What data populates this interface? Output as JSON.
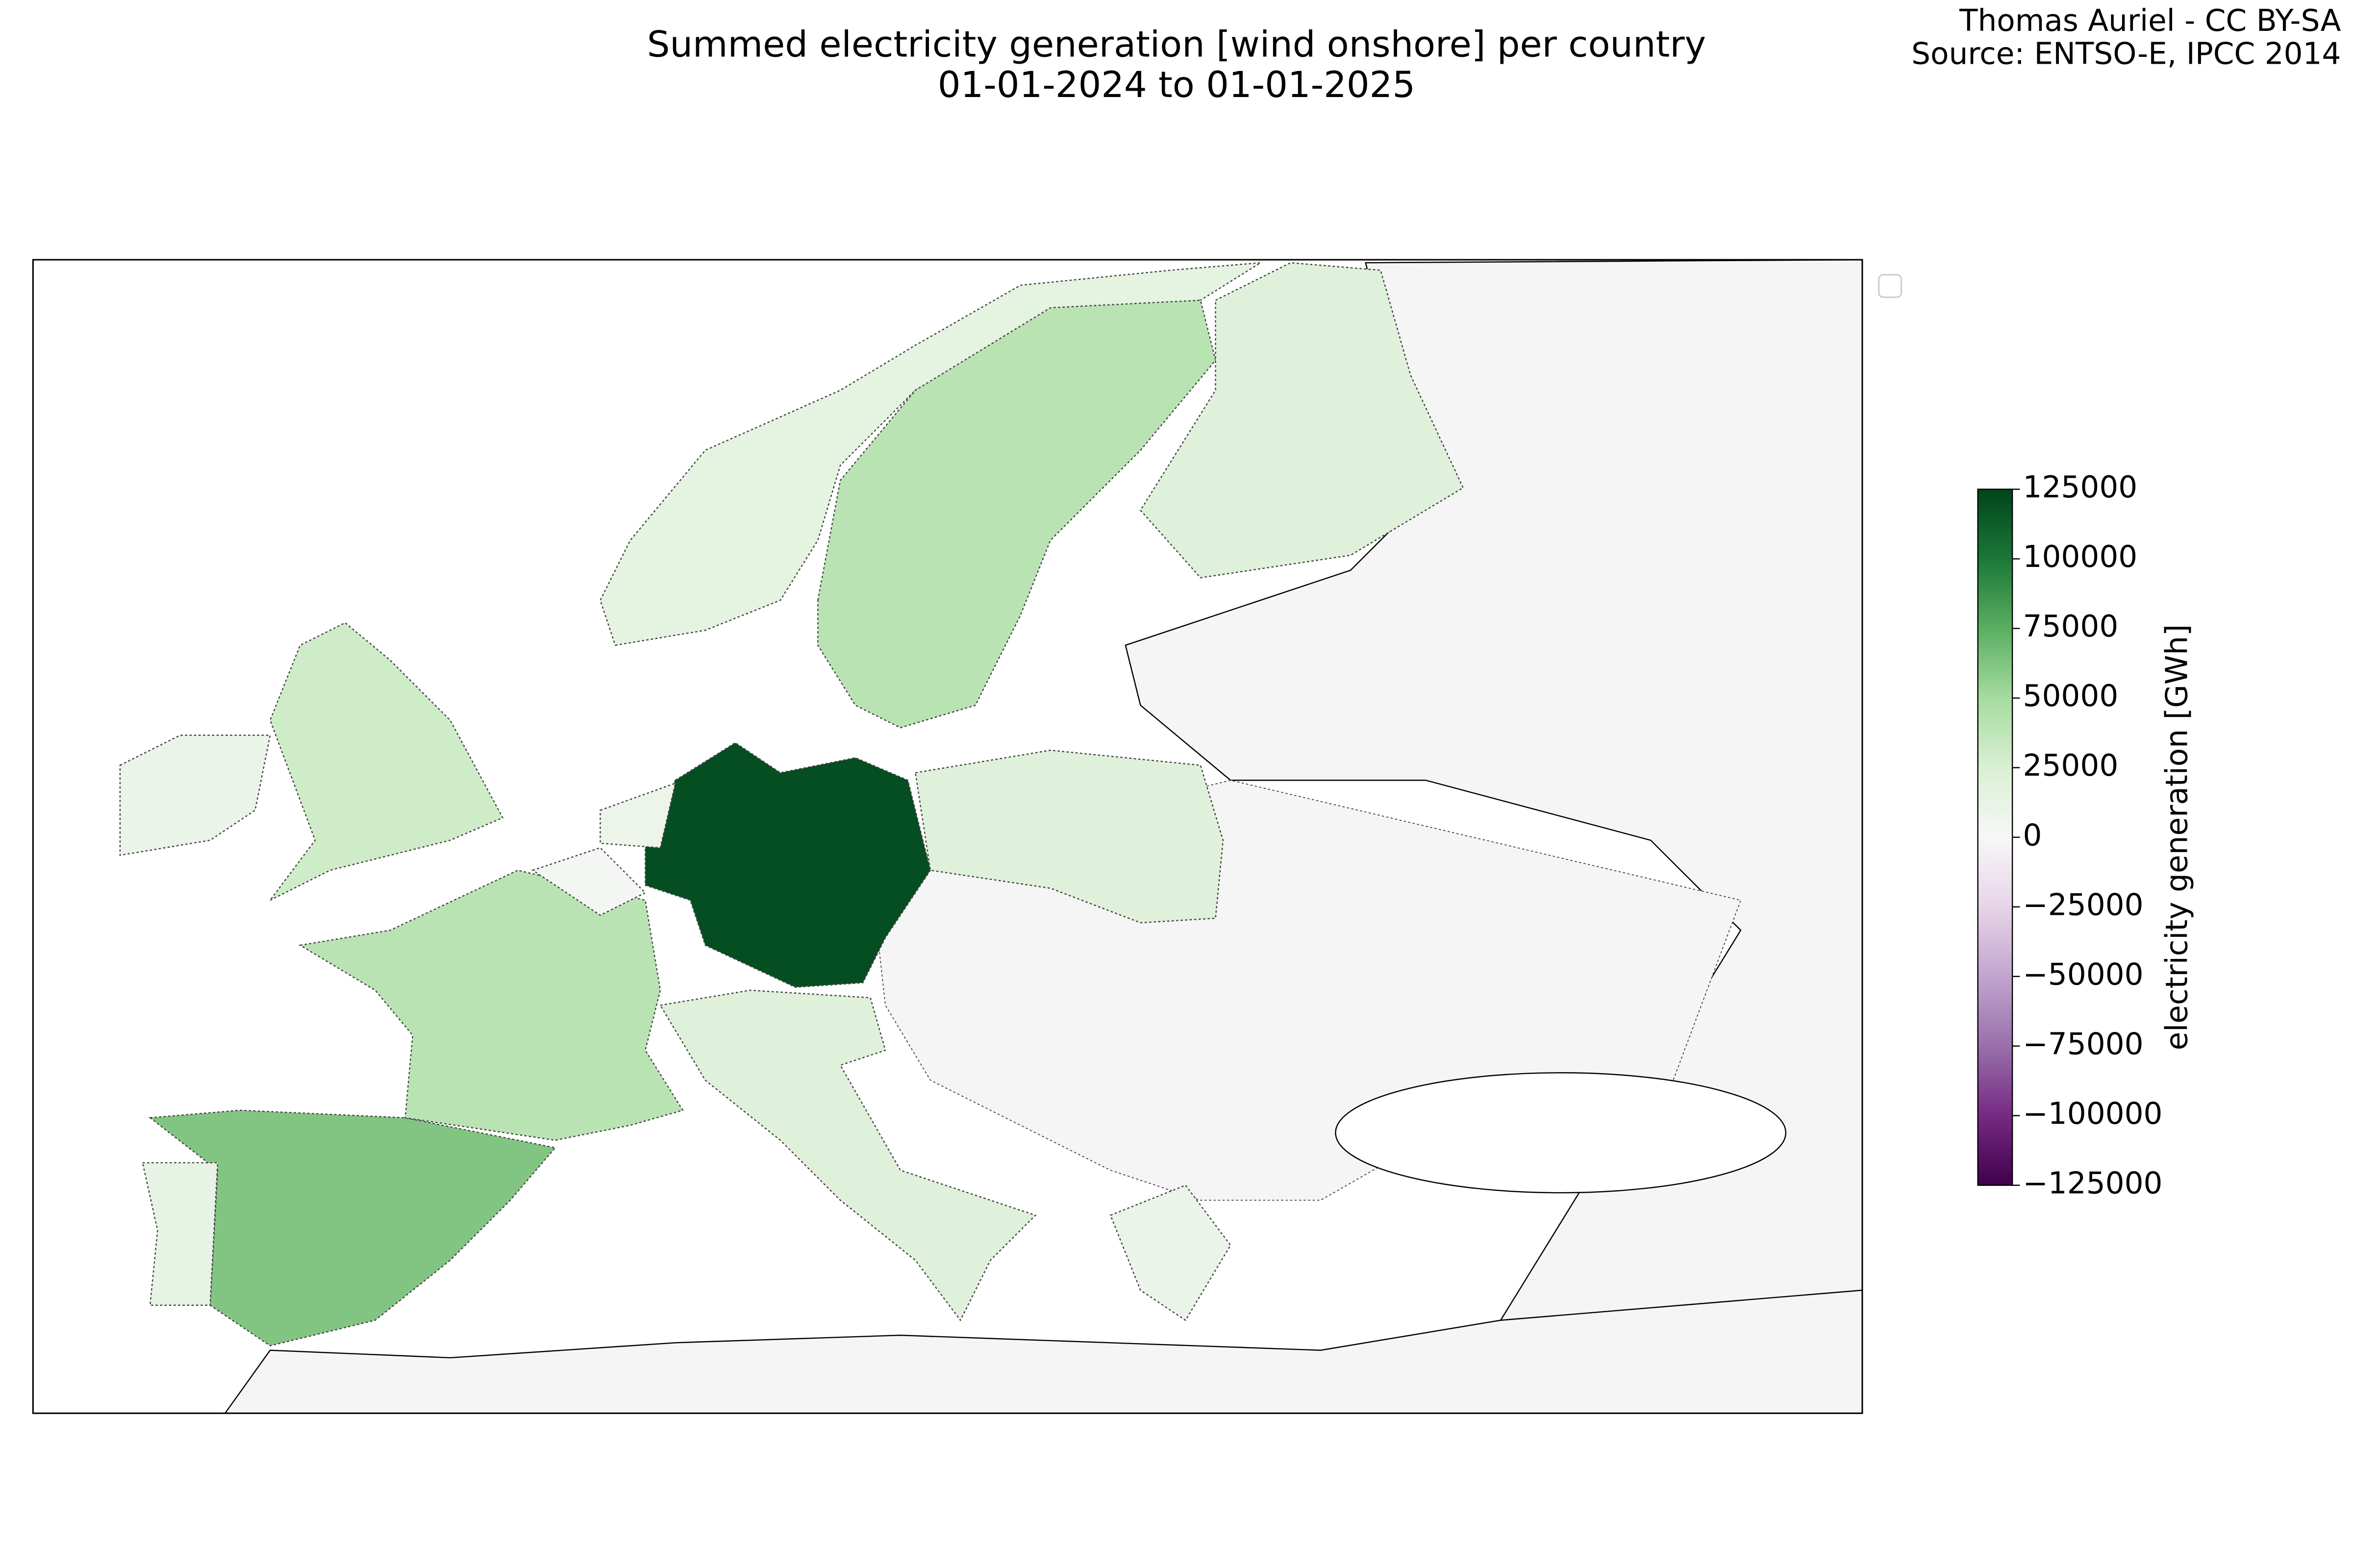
{
  "chart_data": {
    "type": "choropleth",
    "title": "Summed electricity generation [wind onshore] per country",
    "subtitle": "01-01-2024 to 01-01-2025",
    "credits": [
      "Thomas Auriel - CC BY-SA",
      "Source: ENTSO-E, IPCC 2014"
    ],
    "colorbar_label": "electricity generation [GWh]",
    "colormap": "PRGn",
    "vlim": [
      -125000,
      125000
    ],
    "ticks": [
      125000,
      100000,
      75000,
      50000,
      25000,
      0,
      {
        "value": -25000,
        "label": "−25000"
      },
      {
        "value": -50000,
        "label": "−50000"
      },
      {
        "value": -75000,
        "label": "−75000"
      },
      {
        "value": -100000,
        "label": "−100000"
      },
      {
        "value": -125000,
        "label": "−125000"
      }
    ],
    "values": [
      120000,
      62000,
      13000,
      40000,
      30000,
      10000,
      15000,
      40000,
      20000,
      20000,
      20000,
      8000,
      3000,
      10000
    ]
  }
}
